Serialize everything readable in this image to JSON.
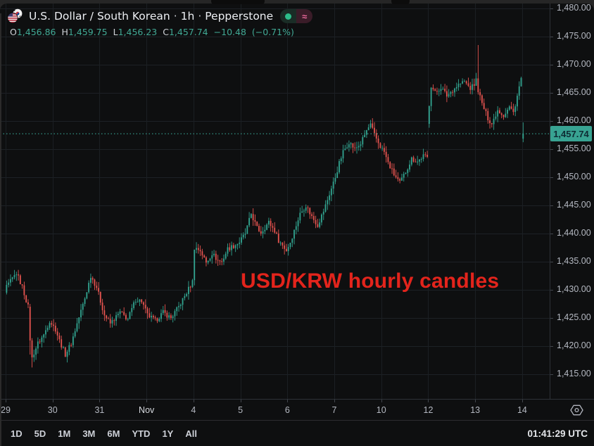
{
  "header": {
    "symbol": "U.S. Dollar / South Korean",
    "separator": "·",
    "interval": "1h",
    "provider": "Pepperstone",
    "approx_symbol": "≈",
    "legend": {
      "open_label": "O",
      "open": "1,456.86",
      "high_label": "H",
      "high": "1,459.75",
      "low_label": "L",
      "low": "1,456.23",
      "close_label": "C",
      "close": "1,457.74",
      "change": "−10.48",
      "change_pct": "(−0.71%)"
    }
  },
  "icons": {
    "symbol_flag": "us-krw-flag-icon",
    "market_status": "green-dot",
    "session_badge": "approx-tilde",
    "scale_settings": "hexagon-dot-eye"
  },
  "annotation": {
    "text": "USD/KRW hourly candles",
    "color": "#e3241c"
  },
  "price_scale": {
    "last_price_label": "1,457.74",
    "labels": [
      {
        "text": "1,480.00",
        "price": 1480
      },
      {
        "text": "1,475.00",
        "price": 1475
      },
      {
        "text": "1,470.00",
        "price": 1470
      },
      {
        "text": "1,465.00",
        "price": 1465
      },
      {
        "text": "1,460.00",
        "price": 1460
      },
      {
        "text": "1,455.00",
        "price": 1455
      },
      {
        "text": "1,450.00",
        "price": 1450
      },
      {
        "text": "1,445.00",
        "price": 1445
      },
      {
        "text": "1,440.00",
        "price": 1440
      },
      {
        "text": "1,435.00",
        "price": 1435
      },
      {
        "text": "1,430.00",
        "price": 1430
      },
      {
        "text": "1,425.00",
        "price": 1425
      },
      {
        "text": "1,420.00",
        "price": 1420
      },
      {
        "text": "1,415.00",
        "price": 1415
      }
    ]
  },
  "time_scale": {
    "labels": [
      {
        "text": "29",
        "em": false
      },
      {
        "text": "30",
        "em": false
      },
      {
        "text": "31",
        "em": false
      },
      {
        "text": "Nov",
        "em": true
      },
      {
        "text": "4",
        "em": false
      },
      {
        "text": "5",
        "em": false
      },
      {
        "text": "6",
        "em": false
      },
      {
        "text": "7",
        "em": false
      },
      {
        "text": "10",
        "em": false
      },
      {
        "text": "12",
        "em": false
      },
      {
        "text": "13",
        "em": false
      },
      {
        "text": "14",
        "em": false
      }
    ]
  },
  "toolbar": {
    "ranges": [
      "1D",
      "5D",
      "1M",
      "3M",
      "6M",
      "YTD",
      "1Y",
      "All"
    ],
    "clock": "01:41:29 UTC"
  },
  "chart_data": {
    "type": "candlestick",
    "pair": "USD/KRW",
    "interval": "1h",
    "provider": "Pepperstone",
    "annotation": "USD/KRW hourly candles",
    "last_candle": {
      "open": 1456.86,
      "high": 1459.75,
      "low": 1456.23,
      "close": 1457.74
    },
    "change": -10.48,
    "change_pct": -0.71,
    "current_price": 1457.74,
    "y_axis": {
      "min": 1415,
      "max": 1480,
      "step": 5,
      "side": "right"
    },
    "x_axis": {
      "labels": [
        "29",
        "30",
        "31",
        "Nov",
        "4",
        "5",
        "6",
        "7",
        "10",
        "12",
        "13",
        "14"
      ]
    },
    "candles_per_day": 24,
    "up_color": "#31a38f",
    "down_color": "#e4534f",
    "current_price_line_color": "#3db2a0",
    "close_anchors": [
      [
        0,
        1430.5
      ],
      [
        3,
        1432
      ],
      [
        5,
        1433
      ],
      [
        8,
        1430.5
      ],
      [
        11,
        1427
      ],
      [
        12,
        1421
      ],
      [
        13,
        1418
      ],
      [
        16,
        1420.5
      ],
      [
        19,
        1422
      ],
      [
        22,
        1424.5
      ],
      [
        25,
        1423
      ],
      [
        27,
        1421
      ],
      [
        30,
        1418.5
      ],
      [
        33,
        1420.5
      ],
      [
        36,
        1424
      ],
      [
        40,
        1428.5
      ],
      [
        43,
        1432.5
      ],
      [
        46,
        1430.5
      ],
      [
        48,
        1428
      ],
      [
        50,
        1425.5
      ],
      [
        53,
        1424
      ],
      [
        58,
        1426
      ],
      [
        62,
        1424.8
      ],
      [
        66,
        1428.3
      ],
      [
        69,
        1428
      ],
      [
        72,
        1425.5
      ],
      [
        76,
        1424.5
      ],
      [
        80,
        1426
      ],
      [
        84,
        1425
      ],
      [
        88,
        1427
      ],
      [
        92,
        1429.5
      ],
      [
        95,
        1431.5
      ],
      [
        96,
        1437.5
      ],
      [
        99,
        1437
      ],
      [
        102,
        1434.8
      ],
      [
        105,
        1436.5
      ],
      [
        108,
        1435.2
      ],
      [
        110,
        1435
      ],
      [
        113,
        1437.3
      ],
      [
        116,
        1437.8
      ],
      [
        119,
        1438.5
      ],
      [
        122,
        1440
      ],
      [
        125,
        1443.5
      ],
      [
        128,
        1441
      ],
      [
        130,
        1440.2
      ],
      [
        134,
        1442
      ],
      [
        137,
        1440.5
      ],
      [
        139,
        1438.8
      ],
      [
        143,
        1437
      ],
      [
        145,
        1438.5
      ],
      [
        147,
        1440.5
      ],
      [
        150,
        1443.5
      ],
      [
        153,
        1445
      ],
      [
        156,
        1443
      ],
      [
        159,
        1441.5
      ],
      [
        162,
        1444
      ],
      [
        165,
        1447
      ],
      [
        168,
        1450
      ],
      [
        170,
        1452.5
      ],
      [
        172,
        1454.5
      ],
      [
        175,
        1456.3
      ],
      [
        178,
        1455
      ],
      [
        181,
        1456
      ],
      [
        184,
        1458.3
      ],
      [
        186,
        1459.3
      ],
      [
        188,
        1457.5
      ],
      [
        191,
        1455.5
      ],
      [
        193,
        1454.5
      ],
      [
        195,
        1452.5
      ],
      [
        198,
        1450.5
      ],
      [
        201,
        1449
      ],
      [
        204,
        1451
      ],
      [
        207,
        1453.3
      ],
      [
        210,
        1452.8
      ],
      [
        213,
        1453.8
      ],
      [
        215,
        1453.5
      ],
      [
        216,
        1463
      ],
      [
        217,
        1466.3
      ],
      [
        219,
        1465
      ],
      [
        222,
        1466
      ],
      [
        225,
        1464.5
      ],
      [
        228,
        1465.5
      ],
      [
        231,
        1466.5
      ],
      [
        234,
        1467
      ],
      [
        237,
        1465.8
      ],
      [
        239,
        1466.5
      ],
      [
        240,
        1467.3
      ],
      [
        241,
        1465.5
      ],
      [
        243,
        1463
      ],
      [
        246,
        1460.5
      ],
      [
        248,
        1459.5
      ],
      [
        251,
        1462
      ],
      [
        254,
        1461
      ],
      [
        257,
        1462.5
      ],
      [
        259,
        1461.5
      ],
      [
        261,
        1464.5
      ],
      [
        263,
        1467.5
      ],
      [
        264,
        1457.74
      ]
    ],
    "candle_overrides": {
      "12": {
        "o": 1427,
        "h": 1427.5,
        "l": 1418.5,
        "c": 1421
      },
      "13": {
        "o": 1421,
        "h": 1421.4,
        "l": 1416.2,
        "c": 1418
      },
      "216": {
        "o": 1459.5,
        "l": 1458.8
      },
      "241": {
        "h": 1473.5
      },
      "264": {
        "o": 1456.86,
        "h": 1459.75,
        "l": 1456.23,
        "c": 1457.74
      }
    }
  }
}
